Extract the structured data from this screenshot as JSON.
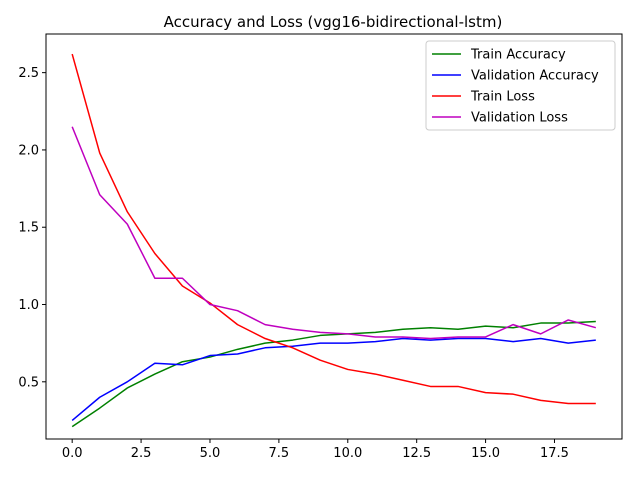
{
  "chart_data": {
    "type": "line",
    "title": "Accuracy and Loss (vgg16-bidirectional-lstm)",
    "xlabel": "",
    "ylabel": "",
    "xlim": [
      -0.95,
      19.95
    ],
    "ylim": [
      0.13,
      2.75
    ],
    "xticks": [
      0.0,
      2.5,
      5.0,
      7.5,
      10.0,
      12.5,
      15.0,
      17.5
    ],
    "xtick_labels": [
      "0.0",
      "2.5",
      "5.0",
      "7.5",
      "10.0",
      "12.5",
      "15.0",
      "17.5"
    ],
    "yticks": [
      0.5,
      1.0,
      1.5,
      2.0,
      2.5
    ],
    "ytick_labels": [
      "0.5",
      "1.0",
      "1.5",
      "2.0",
      "2.5"
    ],
    "grid": false,
    "legend_position": "top-right",
    "x": [
      0,
      1,
      2,
      3,
      4,
      5,
      6,
      7,
      8,
      9,
      10,
      11,
      12,
      13,
      14,
      15,
      16,
      17,
      18,
      19
    ],
    "series": [
      {
        "name": "Train Accuracy",
        "color": "#008000",
        "values": [
          0.21,
          0.33,
          0.46,
          0.55,
          0.63,
          0.66,
          0.71,
          0.75,
          0.77,
          0.8,
          0.81,
          0.82,
          0.84,
          0.85,
          0.84,
          0.86,
          0.85,
          0.88,
          0.88,
          0.89
        ]
      },
      {
        "name": "Validation Accuracy",
        "color": "#0000ff",
        "values": [
          0.25,
          0.4,
          0.5,
          0.62,
          0.61,
          0.67,
          0.68,
          0.72,
          0.73,
          0.75,
          0.75,
          0.76,
          0.78,
          0.77,
          0.78,
          0.78,
          0.76,
          0.78,
          0.75,
          0.77
        ]
      },
      {
        "name": "Train Loss",
        "color": "#ff0000",
        "values": [
          2.62,
          1.98,
          1.6,
          1.33,
          1.12,
          1.01,
          0.87,
          0.78,
          0.72,
          0.64,
          0.58,
          0.55,
          0.51,
          0.47,
          0.47,
          0.43,
          0.42,
          0.38,
          0.36,
          0.36
        ]
      },
      {
        "name": "Validation Loss",
        "color": "#bf00bf",
        "values": [
          2.15,
          1.71,
          1.52,
          1.17,
          1.17,
          1.0,
          0.96,
          0.87,
          0.84,
          0.82,
          0.81,
          0.79,
          0.79,
          0.78,
          0.79,
          0.79,
          0.87,
          0.81,
          0.9,
          0.85
        ]
      }
    ]
  }
}
